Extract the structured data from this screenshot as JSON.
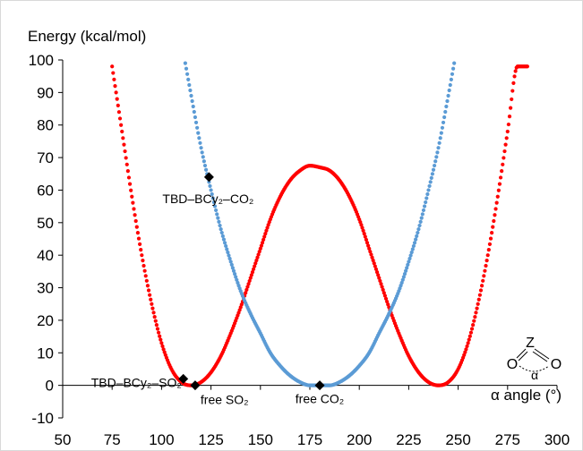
{
  "chart_data": {
    "type": "scatter",
    "ylabel": "Energy (kcal/mol)",
    "xlabel": "α angle (°)",
    "xlim": [
      50,
      300
    ],
    "ylim": [
      -10,
      100
    ],
    "x_ticks": [
      50,
      75,
      100,
      125,
      150,
      175,
      200,
      225,
      250,
      275,
      300
    ],
    "y_ticks": [
      -10,
      0,
      10,
      20,
      30,
      40,
      50,
      60,
      70,
      80,
      90,
      100
    ],
    "grid": false,
    "series": [
      {
        "color": "#ff0000",
        "x": [
          75,
          80,
          85,
          90,
          95,
          100,
          105,
          110,
          115,
          120,
          125,
          130,
          135,
          140,
          145,
          150,
          155,
          160,
          165,
          170,
          175,
          180,
          185,
          190,
          195,
          200,
          205,
          210,
          215,
          220,
          225,
          230,
          235,
          240,
          245,
          250,
          255,
          260,
          265,
          270,
          275,
          280,
          285
        ],
        "y": [
          98,
          78,
          58,
          40,
          25,
          13,
          5,
          1,
          0,
          1,
          4,
          9,
          16,
          24,
          33,
          42,
          51,
          58,
          63,
          66,
          67.5,
          67,
          66,
          63,
          58,
          51,
          42,
          33,
          24,
          16,
          9,
          4,
          1,
          0,
          1,
          5,
          13,
          25,
          40,
          58,
          78,
          98,
          98
        ]
      },
      {
        "color": "#5b9bd5",
        "x": [
          112,
          115,
          120,
          125,
          130,
          135,
          140,
          145,
          150,
          155,
          160,
          165,
          170,
          175,
          180,
          185,
          190,
          195,
          200,
          205,
          210,
          215,
          220,
          225,
          230,
          235,
          240,
          245,
          248
        ],
        "y": [
          99,
          89,
          73,
          60,
          48,
          38,
          29,
          22,
          16,
          10,
          6,
          3,
          1,
          0,
          0,
          0,
          1,
          3,
          6,
          10,
          16,
          22,
          29,
          38,
          48,
          60,
          73,
          89,
          99
        ]
      }
    ],
    "markers": [
      {
        "x": 124,
        "y": 64,
        "label": "TBD–BCy₂–CO₂"
      },
      {
        "x": 111,
        "y": 2,
        "label": "TBD–BCy₂–SO₂"
      },
      {
        "x": 117,
        "y": 0,
        "label": "free SO₂"
      },
      {
        "x": 180,
        "y": 0,
        "label": "free CO₂"
      }
    ],
    "inset": {
      "top": "Z",
      "left": "O",
      "right": "O",
      "angle": "α"
    }
  }
}
